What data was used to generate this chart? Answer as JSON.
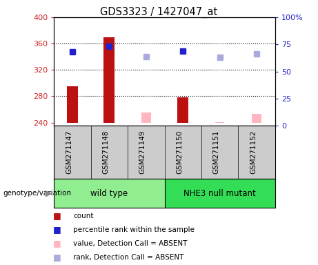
{
  "title": "GDS3323 / 1427047_at",
  "samples": [
    "GSM271147",
    "GSM271148",
    "GSM271149",
    "GSM271150",
    "GSM271151",
    "GSM271152"
  ],
  "groups": [
    {
      "label": "wild type",
      "color": "#90ee90",
      "indices": [
        0,
        1,
        2
      ]
    },
    {
      "label": "NHE3 null mutant",
      "color": "#33dd55",
      "indices": [
        3,
        4,
        5
      ]
    }
  ],
  "ylim_left": [
    235,
    400
  ],
  "ylim_right": [
    0,
    100
  ],
  "yticks_left": [
    240,
    280,
    320,
    360,
    400
  ],
  "yticks_right": [
    0,
    25,
    50,
    75,
    100
  ],
  "ytick_labels_right": [
    "0",
    "25",
    "50",
    "75",
    "100%"
  ],
  "bar_baseline": 240,
  "count_values": [
    295,
    370,
    null,
    278,
    null,
    null
  ],
  "count_color": "#bb1111",
  "absent_value_values": [
    null,
    null,
    255,
    null,
    241,
    253
  ],
  "absent_value_color": "#ffb6c1",
  "percentile_rank_values": [
    68,
    73,
    null,
    69,
    null,
    null
  ],
  "percentile_rank_color": "#2222cc",
  "absent_rank_values": [
    null,
    null,
    64,
    null,
    63,
    66
  ],
  "absent_rank_color": "#aaaadd",
  "legend_items": [
    {
      "label": "count",
      "color": "#bb1111"
    },
    {
      "label": "percentile rank within the sample",
      "color": "#2222cc"
    },
    {
      "label": "value, Detection Call = ABSENT",
      "color": "#ffb6c1"
    },
    {
      "label": "rank, Detection Call = ABSENT",
      "color": "#aaaadd"
    }
  ],
  "left_axis_color": "#cc2222",
  "right_axis_color": "#2222cc",
  "bar_width": 0.3,
  "marker_size": 6,
  "genotype_label": "genotype/variation"
}
